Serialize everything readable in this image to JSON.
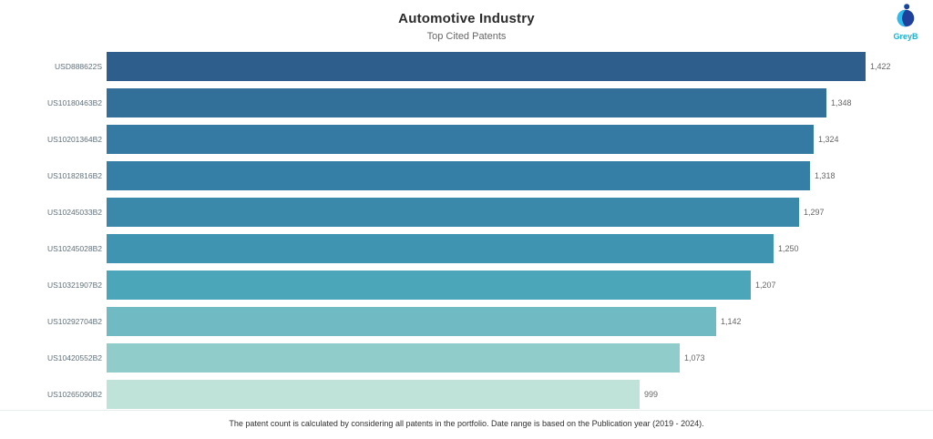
{
  "header": {
    "title": "Automotive Industry",
    "subtitle": "Top Cited Patents"
  },
  "brand": {
    "name": "GreyB",
    "logo_icon": "greyb-swirl-sphere",
    "mark_dark_blue": "#1f419b",
    "mark_cyan": "#29bdf0",
    "wordmark_color": "#19b2d3"
  },
  "chart_data": {
    "type": "bar",
    "orientation": "horizontal",
    "title": "Automotive Industry",
    "subtitle": "Top Cited Patents",
    "xlabel": "",
    "ylabel": "",
    "grid": false,
    "legend": false,
    "value_axis_visible": false,
    "value_labels_position": "outside-end",
    "categories": [
      "USD888622S",
      "US10180463B2",
      "US10201364B2",
      "US10182816B2",
      "US10245033B2",
      "US10245028B2",
      "US10321907B2",
      "US10292704B2",
      "US10420552B2",
      "US10265090B2"
    ],
    "values": [
      1422,
      1348,
      1324,
      1318,
      1297,
      1250,
      1207,
      1142,
      1073,
      999
    ],
    "value_labels": [
      "1,422",
      "1,348",
      "1,324",
      "1,318",
      "1,297",
      "1,250",
      "1,207",
      "1,142",
      "1,073",
      "999"
    ],
    "bar_colors": [
      "#2e5e8b",
      "#32709a",
      "#347aa3",
      "#357ea6",
      "#3a88aa",
      "#3f94b2",
      "#4ba6b9",
      "#70bac3",
      "#90cdca",
      "#bfe3d9"
    ],
    "label_color": "#60707b",
    "value_color": "#666666"
  },
  "footnote": "The patent count is calculated by considering all patents in the portfolio. Date range is based on the Publication year (2019 - 2024)."
}
